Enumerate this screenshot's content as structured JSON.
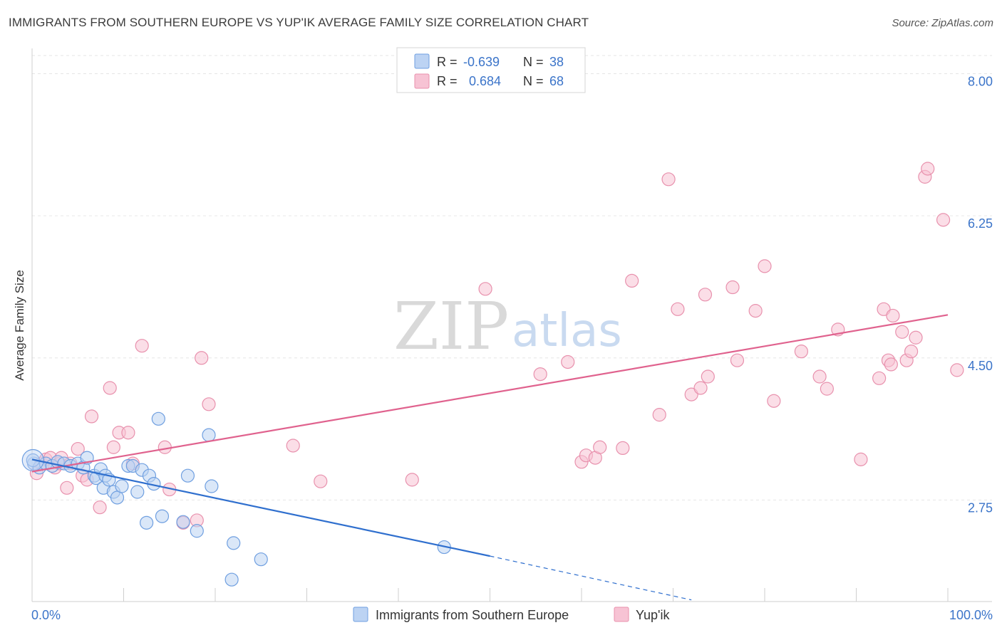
{
  "title": "IMMIGRANTS FROM SOUTHERN EUROPE VS YUP'IK AVERAGE FAMILY SIZE CORRELATION CHART",
  "source": "Source: ZipAtlas.com",
  "watermark": {
    "zip": "ZIP",
    "atlas": "atlas"
  },
  "legend": {
    "blue": {
      "r_label": "R =",
      "r_value": "-0.639",
      "n_label": "N =",
      "n_value": "38"
    },
    "pink": {
      "r_label": "R =",
      "r_value": "0.684",
      "n_label": "N =",
      "n_value": "68"
    }
  },
  "colors": {
    "blue_fill": "#bcd3f3",
    "blue_stroke": "#6f9fe0",
    "blue_line": "#2f6fce",
    "pink_fill": "#f7c3d4",
    "pink_stroke": "#e891ad",
    "pink_line": "#e0628e",
    "tick_text": "#3b74c9",
    "grid": "#e6e6e6"
  },
  "chart_data": {
    "type": "scatter",
    "title": "IMMIGRANTS FROM SOUTHERN EUROPE VS YUP'IK AVERAGE FAMILY SIZE CORRELATION CHART",
    "xlabel": "",
    "ylabel": "Average Family Size",
    "xlim": [
      0,
      100
    ],
    "ylim": [
      1.5,
      8.25
    ],
    "x_tick_labels": [
      "0.0%",
      "100.0%"
    ],
    "y_ticks": [
      2.75,
      4.5,
      6.25,
      8.0
    ],
    "y_tick_labels": [
      "2.75",
      "4.50",
      "6.25",
      "8.00"
    ],
    "grid": true,
    "legend_position": "top-center",
    "series": [
      {
        "name": "Immigrants from Southern Europe",
        "color": "#6f9fe0",
        "r": -0.639,
        "n": 38,
        "trend": {
          "x": [
            0,
            50
          ],
          "y": [
            3.25,
            2.06
          ],
          "dashed_to": [
            72,
            1.52
          ]
        },
        "points": [
          [
            0.2,
            3.2
          ],
          [
            0.8,
            3.15
          ],
          [
            1.5,
            3.2
          ],
          [
            2.2,
            3.17
          ],
          [
            2.8,
            3.22
          ],
          [
            3.5,
            3.2
          ],
          [
            4.2,
            3.17
          ],
          [
            5.0,
            3.2
          ],
          [
            5.6,
            3.15
          ],
          [
            6.0,
            3.27
          ],
          [
            6.8,
            3.05
          ],
          [
            7.0,
            3.02
          ],
          [
            7.5,
            3.13
          ],
          [
            7.8,
            2.9
          ],
          [
            8.0,
            3.05
          ],
          [
            8.4,
            3.0
          ],
          [
            8.9,
            2.85
          ],
          [
            9.3,
            2.78
          ],
          [
            9.8,
            2.92
          ],
          [
            10.5,
            3.17
          ],
          [
            11.0,
            3.17
          ],
          [
            11.5,
            2.85
          ],
          [
            12.0,
            3.12
          ],
          [
            12.8,
            3.05
          ],
          [
            13.3,
            2.95
          ],
          [
            12.5,
            2.47
          ],
          [
            14.2,
            2.55
          ],
          [
            16.5,
            2.48
          ],
          [
            18.0,
            2.37
          ],
          [
            13.8,
            3.75
          ],
          [
            17.0,
            3.05
          ],
          [
            19.3,
            3.55
          ],
          [
            19.6,
            2.92
          ],
          [
            22.0,
            2.22
          ],
          [
            21.8,
            1.77
          ],
          [
            25.0,
            2.02
          ],
          [
            45.0,
            2.17
          ],
          [
            0.1,
            3.24
          ]
        ]
      },
      {
        "name": "Yup'ik",
        "color": "#e891ad",
        "r": 0.684,
        "n": 68,
        "trend": {
          "x": [
            0,
            100
          ],
          "y": [
            3.1,
            5.03
          ]
        },
        "points": [
          [
            0.5,
            3.08
          ],
          [
            1.0,
            3.2
          ],
          [
            1.5,
            3.25
          ],
          [
            2.0,
            3.27
          ],
          [
            2.5,
            3.15
          ],
          [
            3.0,
            3.2
          ],
          [
            3.2,
            3.27
          ],
          [
            3.8,
            2.9
          ],
          [
            4.2,
            3.2
          ],
          [
            5.0,
            3.38
          ],
          [
            5.5,
            3.05
          ],
          [
            6.0,
            3.0
          ],
          [
            6.5,
            3.78
          ],
          [
            7.4,
            2.66
          ],
          [
            8.5,
            4.13
          ],
          [
            8.9,
            3.4
          ],
          [
            9.5,
            3.58
          ],
          [
            10.5,
            3.58
          ],
          [
            11.0,
            3.2
          ],
          [
            12.0,
            4.65
          ],
          [
            14.5,
            3.4
          ],
          [
            15.0,
            2.88
          ],
          [
            16.5,
            2.47
          ],
          [
            18.0,
            2.5
          ],
          [
            18.5,
            4.5
          ],
          [
            19.3,
            3.93
          ],
          [
            28.5,
            3.42
          ],
          [
            31.5,
            2.98
          ],
          [
            41.5,
            3.0
          ],
          [
            49.5,
            5.35
          ],
          [
            55.5,
            4.3
          ],
          [
            58.5,
            4.45
          ],
          [
            60.0,
            3.22
          ],
          [
            60.5,
            3.3
          ],
          [
            61.5,
            3.27
          ],
          [
            62.0,
            3.4
          ],
          [
            64.5,
            3.39
          ],
          [
            65.5,
            5.45
          ],
          [
            68.5,
            3.8
          ],
          [
            69.5,
            6.7
          ],
          [
            70.5,
            5.1
          ],
          [
            72.0,
            4.05
          ],
          [
            73.0,
            4.13
          ],
          [
            73.5,
            5.28
          ],
          [
            73.8,
            4.27
          ],
          [
            76.5,
            5.37
          ],
          [
            77.0,
            4.47
          ],
          [
            79.0,
            5.08
          ],
          [
            80.0,
            5.63
          ],
          [
            81.0,
            3.97
          ],
          [
            84.0,
            4.58
          ],
          [
            86.0,
            4.27
          ],
          [
            86.8,
            4.12
          ],
          [
            88.0,
            4.85
          ],
          [
            90.5,
            3.25
          ],
          [
            92.5,
            4.25
          ],
          [
            93.0,
            5.1
          ],
          [
            93.5,
            4.47
          ],
          [
            93.8,
            4.42
          ],
          [
            94.0,
            5.02
          ],
          [
            95.0,
            4.82
          ],
          [
            95.5,
            4.47
          ],
          [
            96.0,
            4.58
          ],
          [
            96.5,
            4.75
          ],
          [
            97.5,
            6.73
          ],
          [
            97.8,
            6.83
          ],
          [
            99.5,
            6.2
          ],
          [
            101.0,
            4.35
          ]
        ]
      }
    ]
  }
}
